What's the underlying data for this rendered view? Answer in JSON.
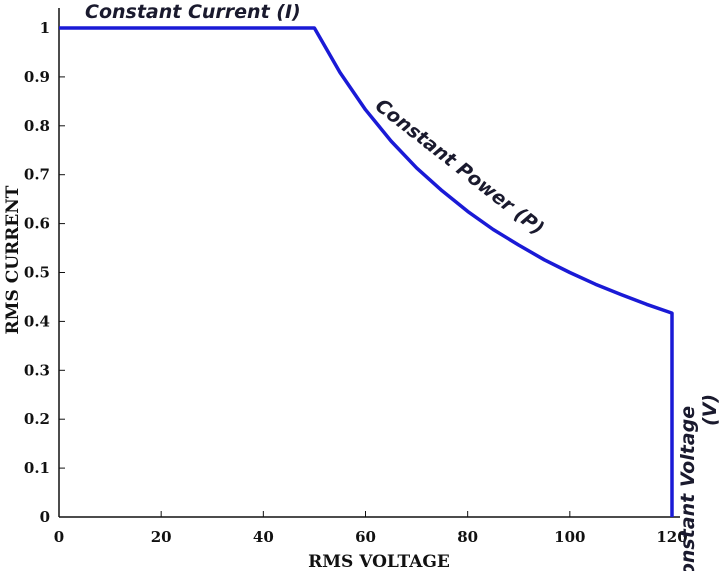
{
  "chart_data": {
    "type": "line",
    "title": "",
    "xlabel": "RMS VOLTAGE",
    "ylabel": "RMS CURRENT",
    "xlim": [
      0,
      120
    ],
    "ylim": [
      0,
      1
    ],
    "xticks": [
      "0",
      "20",
      "40",
      "60",
      "80",
      "100",
      "120"
    ],
    "yticks": [
      "0",
      "0.1",
      "0.2",
      "0.3",
      "0.4",
      "0.5",
      "0.6",
      "0.7",
      "0.8",
      "0.9",
      "1"
    ],
    "grid": false,
    "series": [
      {
        "color": "#1a1ad6",
        "x": [
          0,
          50,
          55,
          60,
          65,
          70,
          75,
          80,
          85,
          90,
          95,
          100,
          105,
          110,
          115,
          120,
          120
        ],
        "y": [
          1,
          1,
          0.909,
          0.833,
          0.769,
          0.714,
          0.667,
          0.625,
          0.588,
          0.556,
          0.526,
          0.5,
          0.476,
          0.455,
          0.435,
          0.417,
          0
        ]
      }
    ],
    "annotations": [
      {
        "text": "Constant Current (I)"
      },
      {
        "text": "Constant Power (P)"
      },
      {
        "text": "Constant Voltage"
      },
      {
        "text": "(V)"
      }
    ]
  }
}
